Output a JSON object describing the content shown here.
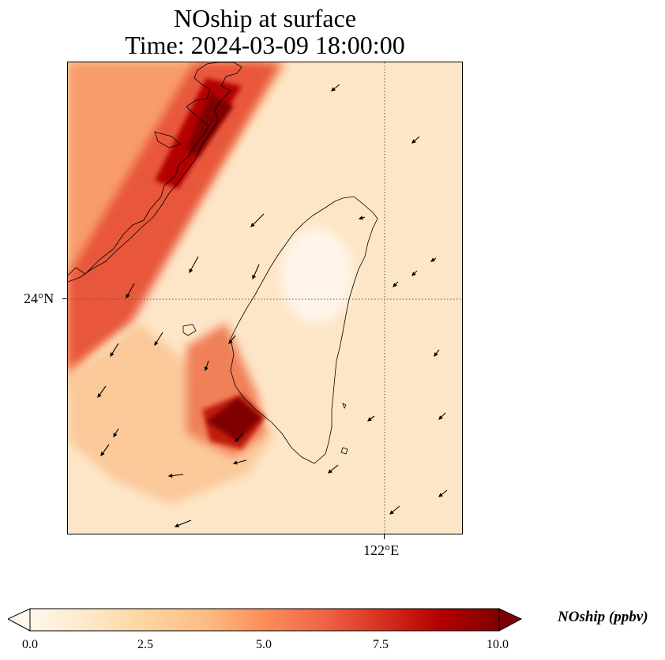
{
  "title_line1": "NOship at surface",
  "title_line2": "Time: 2024-03-09 18:00:00",
  "axes": {
    "lat_label": "24°N",
    "lon_label": "122°E"
  },
  "colorbar": {
    "title": "NOship (ppbv)",
    "ticks": [
      "0.0",
      "2.5",
      "5.0",
      "7.5",
      "10.0"
    ],
    "min": 0,
    "max": 10,
    "extend": "both",
    "colormap": "OrRd",
    "colors": [
      "#fff7ec",
      "#fee8c8",
      "#fdd49e",
      "#fdbb84",
      "#fc8d59",
      "#ef6548",
      "#d7301f",
      "#b30000",
      "#7f0000"
    ]
  },
  "map": {
    "features": [
      "coastline",
      "gridlines",
      "wind-vectors",
      "concentration-field"
    ],
    "gridlines": "dotted",
    "regions": [
      "Taiwan",
      "Fujian coast"
    ]
  }
}
